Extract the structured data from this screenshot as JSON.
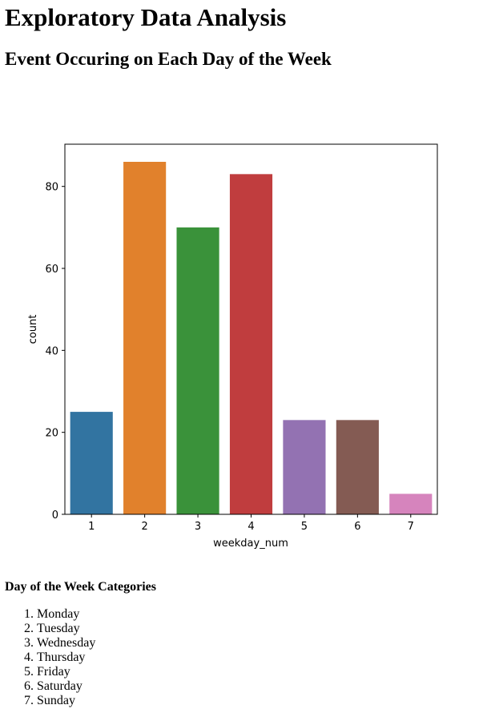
{
  "page": {
    "title": "Exploratory Data Analysis",
    "subtitle": "Event Occuring on Each Day of the Week"
  },
  "chart_data": {
    "type": "bar",
    "title": "",
    "xlabel": "weekday_num",
    "ylabel": "count",
    "categories": [
      "1",
      "2",
      "3",
      "4",
      "5",
      "6",
      "7"
    ],
    "values": [
      25,
      86,
      70,
      83,
      23,
      23,
      5
    ],
    "colors": [
      "#3274a1",
      "#e1812c",
      "#3a923a",
      "#c03d3e",
      "#9372b2",
      "#845b53",
      "#d684bd"
    ],
    "ylim": [
      0,
      90.3
    ],
    "yticks": [
      0,
      20,
      40,
      60,
      80
    ],
    "grid": false,
    "legend": "none"
  },
  "categories_section": {
    "heading": "Day of the Week Categories",
    "days": [
      "Monday",
      "Tuesday",
      "Wednesday",
      "Thursday",
      "Friday",
      "Saturday",
      "Sunday"
    ]
  }
}
